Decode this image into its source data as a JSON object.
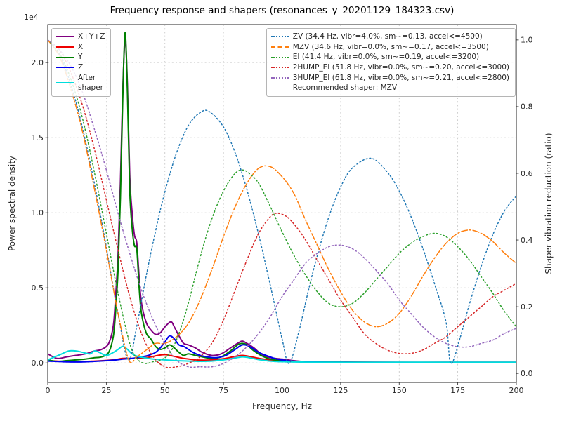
{
  "title": "Frequency response and shapers (resonances_y_20201129_184323.csv)",
  "axes": {
    "x": {
      "label": "Frequency, Hz",
      "min": 0,
      "max": 200,
      "ticks": [
        0,
        25,
        50,
        75,
        100,
        125,
        150,
        175,
        200
      ],
      "tick_labels": [
        "0",
        "25",
        "50",
        "75",
        "100",
        "125",
        "150",
        "175",
        "200"
      ]
    },
    "y_left": {
      "label": "Power spectral density",
      "offset_text": "1e4",
      "min": -0.13,
      "max": 2.253,
      "ticks": [
        0.0,
        0.5,
        1.0,
        1.5,
        2.0
      ],
      "tick_labels": [
        "0.0",
        "0.5",
        "1.0",
        "1.5",
        "2.0"
      ]
    },
    "y_right": {
      "label": "Shaper vibration reduction (ratio)",
      "min": -0.027,
      "max": 1.046,
      "ticks": [
        0.0,
        0.2,
        0.4,
        0.6,
        0.8,
        1.0
      ],
      "tick_labels": [
        "0.0",
        "0.2",
        "0.4",
        "0.6",
        "0.8",
        "1.0"
      ]
    }
  },
  "legend_psd": {
    "items": [
      {
        "label": "X+Y+Z",
        "color": "#800080",
        "style": "solid"
      },
      {
        "label": "X",
        "color": "#ee0000",
        "style": "solid"
      },
      {
        "label": "Y",
        "color": "#008000",
        "style": "solid"
      },
      {
        "label": "Z",
        "color": "#0000ee",
        "style": "solid"
      },
      {
        "label": "After\nshaper",
        "color": "#00dddd",
        "style": "solid"
      }
    ]
  },
  "legend_shapers": {
    "items": [
      {
        "label": "ZV (34.4 Hz, vibr=4.0%, sm~=0.13, accel<=4500)",
        "color": "#1f77b4",
        "style": "dotted"
      },
      {
        "label": "MZV (34.6 Hz, vibr=0.0%, sm~=0.17, accel<=3500)",
        "color": "#ff7f0e",
        "style": "dashdot"
      },
      {
        "label": "EI (41.4 Hz, vibr=0.0%, sm~=0.19, accel<=3200)",
        "color": "#2ca02c",
        "style": "dotted"
      },
      {
        "label": "2HUMP_EI (51.8 Hz, vibr=0.0%, sm~=0.20, accel<=3000)",
        "color": "#d62728",
        "style": "dotted"
      },
      {
        "label": "3HUMP_EI (61.8 Hz, vibr=0.0%, sm~=0.21, accel<=2800)",
        "color": "#9467bd",
        "style": "dotted"
      }
    ],
    "note": "Recommended shaper: MZV"
  },
  "chart_data": {
    "type": "line",
    "x_unit": "Hz",
    "psd_scale": "1e4",
    "series": [
      {
        "name": "X+Y+Z",
        "axis": "left",
        "color": "#800080",
        "style": "solid",
        "x": [
          0,
          4,
          8,
          12,
          16,
          20,
          23,
          26,
          28,
          29,
          30,
          31,
          32,
          33,
          34,
          35,
          36,
          37,
          38,
          39,
          40,
          42,
          44,
          46,
          48,
          50,
          52,
          53,
          54,
          56,
          58,
          60,
          63,
          66,
          70,
          74,
          78,
          81,
          83,
          85,
          88,
          91,
          95,
          100,
          105,
          110,
          120,
          140,
          170,
          200
        ],
        "y": [
          0.06,
          0.03,
          0.04,
          0.05,
          0.06,
          0.08,
          0.09,
          0.13,
          0.25,
          0.45,
          0.72,
          1.2,
          1.8,
          2.15,
          1.85,
          1.25,
          1.0,
          0.85,
          0.8,
          0.57,
          0.4,
          0.27,
          0.22,
          0.19,
          0.2,
          0.24,
          0.27,
          0.27,
          0.24,
          0.18,
          0.13,
          0.12,
          0.1,
          0.07,
          0.05,
          0.06,
          0.1,
          0.13,
          0.145,
          0.13,
          0.1,
          0.06,
          0.035,
          0.025,
          0.015,
          0.008,
          0.005,
          0.004,
          0.004,
          0.004
        ]
      },
      {
        "name": "X",
        "axis": "left",
        "color": "#ee0000",
        "style": "solid",
        "x": [
          0,
          10,
          20,
          28,
          32,
          36,
          40,
          44,
          47,
          50,
          52,
          55,
          58,
          62,
          66,
          70,
          75,
          79,
          83,
          87,
          91,
          96,
          102,
          110,
          125,
          150,
          200
        ],
        "y": [
          0.015,
          0.008,
          0.012,
          0.02,
          0.03,
          0.03,
          0.032,
          0.04,
          0.05,
          0.055,
          0.05,
          0.04,
          0.03,
          0.022,
          0.018,
          0.02,
          0.028,
          0.04,
          0.05,
          0.04,
          0.028,
          0.018,
          0.012,
          0.006,
          0.004,
          0.003,
          0.003
        ]
      },
      {
        "name": "Y",
        "axis": "left",
        "color": "#008000",
        "style": "solid",
        "x": [
          0,
          4,
          8,
          12,
          16,
          20,
          23,
          26,
          28,
          29,
          30,
          31,
          32,
          33,
          34,
          35,
          36,
          37,
          38,
          39,
          40,
          42,
          44,
          46,
          48,
          50,
          52,
          54,
          56,
          58,
          60,
          63,
          66,
          70,
          74,
          78,
          81,
          83,
          85,
          88,
          91,
          95,
          100,
          105,
          110,
          120,
          140,
          170,
          200
        ],
        "y": [
          0.02,
          0.01,
          0.015,
          0.02,
          0.025,
          0.035,
          0.04,
          0.07,
          0.18,
          0.35,
          0.62,
          1.1,
          1.75,
          2.2,
          1.8,
          1.15,
          0.9,
          0.78,
          0.76,
          0.5,
          0.33,
          0.2,
          0.16,
          0.11,
          0.09,
          0.1,
          0.12,
          0.1,
          0.07,
          0.05,
          0.06,
          0.05,
          0.04,
          0.03,
          0.04,
          0.08,
          0.12,
          0.13,
          0.12,
          0.08,
          0.05,
          0.025,
          0.015,
          0.01,
          0.006,
          0.004,
          0.003,
          0.003,
          0.003
        ]
      },
      {
        "name": "Z",
        "axis": "left",
        "color": "#0000ee",
        "style": "solid",
        "x": [
          0,
          10,
          20,
          28,
          32,
          36,
          40,
          43,
          46,
          48,
          50,
          52,
          54,
          56,
          58,
          60,
          62,
          65,
          68,
          72,
          76,
          80,
          83,
          86,
          90,
          94,
          98,
          104,
          112,
          125,
          150,
          200
        ],
        "y": [
          0.012,
          0.006,
          0.01,
          0.018,
          0.025,
          0.03,
          0.04,
          0.05,
          0.07,
          0.1,
          0.14,
          0.18,
          0.16,
          0.12,
          0.11,
          0.09,
          0.07,
          0.05,
          0.04,
          0.035,
          0.05,
          0.09,
          0.12,
          0.11,
          0.07,
          0.045,
          0.025,
          0.012,
          0.006,
          0.004,
          0.003,
          0.003
        ]
      },
      {
        "name": "After shaper",
        "axis": "left",
        "color": "#00dddd",
        "style": "solid",
        "x": [
          0,
          3,
          6,
          9,
          12,
          15,
          18,
          20,
          22,
          25,
          28,
          30,
          32,
          34,
          36,
          38,
          41,
          45,
          50,
          55,
          60,
          65,
          70,
          75,
          79,
          83,
          86,
          90,
          95,
          100,
          110,
          125,
          150,
          200
        ],
        "y": [
          0.02,
          0.04,
          0.06,
          0.08,
          0.08,
          0.07,
          0.06,
          0.08,
          0.07,
          0.05,
          0.07,
          0.09,
          0.11,
          0.09,
          0.06,
          0.045,
          0.035,
          0.025,
          0.02,
          0.015,
          0.012,
          0.01,
          0.012,
          0.02,
          0.03,
          0.04,
          0.035,
          0.022,
          0.012,
          0.008,
          0.005,
          0.004,
          0.004,
          0.004
        ]
      },
      {
        "name": "ZV",
        "axis": "right",
        "color": "#1f77b4",
        "style": "dotted",
        "x": [
          0,
          5,
          10,
          15,
          20,
          25,
          30,
          34.4,
          38,
          42,
          46,
          50,
          55,
          60,
          65,
          69,
          75,
          80,
          85,
          90,
          95,
          100,
          103,
          107,
          111,
          115,
          120,
          125,
          130,
          138,
          145,
          150,
          155,
          160,
          165,
          170,
          172,
          176,
          180,
          185,
          190,
          195,
          200
        ],
        "y": [
          1.0,
          0.955,
          0.863,
          0.731,
          0.566,
          0.378,
          0.178,
          0.04,
          0.142,
          0.292,
          0.426,
          0.545,
          0.662,
          0.743,
          0.782,
          0.785,
          0.739,
          0.661,
          0.551,
          0.416,
          0.264,
          0.104,
          0.03,
          0.12,
          0.241,
          0.352,
          0.47,
          0.559,
          0.616,
          0.645,
          0.603,
          0.547,
          0.471,
          0.377,
          0.27,
          0.154,
          0.03,
          0.107,
          0.208,
          0.321,
          0.416,
          0.488,
          0.532
        ]
      },
      {
        "name": "MZV",
        "axis": "right",
        "color": "#ff7f0e",
        "style": "dashdot",
        "x": [
          0,
          5,
          10,
          15,
          20,
          25,
          30,
          34.6,
          38,
          42,
          46,
          50,
          55,
          60,
          65,
          70,
          75,
          80,
          85,
          90,
          95,
          100,
          105,
          110,
          115,
          120,
          125,
          130,
          135,
          140,
          145,
          150,
          155,
          160,
          165,
          170,
          175,
          180,
          185,
          190,
          195,
          200
        ],
        "y": [
          1.0,
          0.95,
          0.85,
          0.72,
          0.55,
          0.37,
          0.18,
          0.04,
          0.05,
          0.07,
          0.09,
          0.09,
          0.11,
          0.15,
          0.22,
          0.31,
          0.41,
          0.5,
          0.57,
          0.615,
          0.62,
          0.59,
          0.54,
          0.46,
          0.385,
          0.31,
          0.245,
          0.19,
          0.155,
          0.14,
          0.15,
          0.18,
          0.23,
          0.29,
          0.345,
          0.39,
          0.42,
          0.43,
          0.42,
          0.395,
          0.36,
          0.33
        ]
      },
      {
        "name": "EI",
        "axis": "right",
        "color": "#2ca02c",
        "style": "dotted",
        "x": [
          0,
          5,
          10,
          15,
          20,
          25,
          30,
          35,
          38,
          41.4,
          45,
          48,
          52,
          56,
          60,
          64,
          68,
          72,
          76,
          80,
          83,
          86,
          90,
          95,
          100,
          105,
          110,
          115,
          120,
          125,
          130,
          135,
          140,
          145,
          150,
          155,
          160,
          165,
          170,
          175,
          180,
          185,
          190,
          195,
          200
        ],
        "y": [
          1.0,
          0.96,
          0.88,
          0.76,
          0.6,
          0.42,
          0.24,
          0.09,
          0.045,
          0.03,
          0.035,
          0.04,
          0.06,
          0.12,
          0.21,
          0.32,
          0.42,
          0.5,
          0.56,
          0.6,
          0.61,
          0.6,
          0.57,
          0.5,
          0.425,
          0.355,
          0.295,
          0.245,
          0.21,
          0.2,
          0.21,
          0.24,
          0.28,
          0.32,
          0.36,
          0.39,
          0.41,
          0.42,
          0.41,
          0.38,
          0.34,
          0.29,
          0.24,
          0.185,
          0.14
        ]
      },
      {
        "name": "2HUMP_EI",
        "axis": "right",
        "color": "#d62728",
        "style": "dotted",
        "x": [
          0,
          5,
          10,
          15,
          20,
          25,
          30,
          35,
          40,
          45,
          50,
          55,
          60,
          65,
          70,
          75,
          80,
          85,
          90,
          95,
          98,
          102,
          106,
          110,
          115,
          120,
          125,
          130,
          135,
          140,
          145,
          150,
          155,
          160,
          165,
          170,
          175,
          180,
          185,
          190,
          195,
          200
        ],
        "y": [
          1.0,
          0.97,
          0.9,
          0.8,
          0.67,
          0.52,
          0.37,
          0.23,
          0.12,
          0.05,
          0.02,
          0.02,
          0.03,
          0.05,
          0.09,
          0.16,
          0.25,
          0.34,
          0.42,
          0.47,
          0.48,
          0.47,
          0.44,
          0.4,
          0.34,
          0.28,
          0.22,
          0.17,
          0.12,
          0.09,
          0.07,
          0.06,
          0.06,
          0.07,
          0.09,
          0.11,
          0.14,
          0.17,
          0.2,
          0.23,
          0.25,
          0.27
        ]
      },
      {
        "name": "3HUMP_EI",
        "axis": "right",
        "color": "#9467bd",
        "style": "dotted",
        "x": [
          0,
          5,
          10,
          15,
          20,
          25,
          30,
          35,
          40,
          45,
          50,
          55,
          60,
          65,
          70,
          75,
          80,
          85,
          90,
          95,
          100,
          105,
          110,
          115,
          120,
          124,
          128,
          132,
          136,
          140,
          145,
          150,
          155,
          160,
          165,
          170,
          175,
          180,
          185,
          190,
          195,
          200
        ],
        "y": [
          1.0,
          0.97,
          0.92,
          0.84,
          0.73,
          0.61,
          0.48,
          0.36,
          0.25,
          0.16,
          0.09,
          0.04,
          0.02,
          0.02,
          0.02,
          0.03,
          0.05,
          0.08,
          0.12,
          0.17,
          0.23,
          0.28,
          0.33,
          0.36,
          0.38,
          0.385,
          0.38,
          0.365,
          0.34,
          0.31,
          0.27,
          0.22,
          0.18,
          0.14,
          0.11,
          0.09,
          0.08,
          0.08,
          0.09,
          0.1,
          0.12,
          0.135
        ]
      }
    ]
  }
}
